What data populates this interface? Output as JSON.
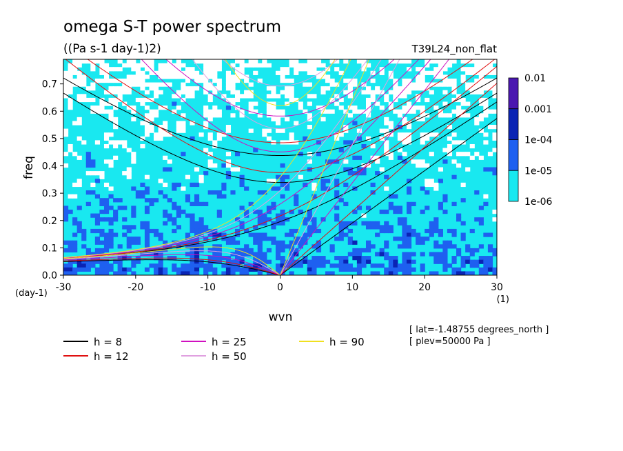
{
  "chart_data": {
    "type": "heatmap",
    "title": "omega S-T power spectrum",
    "subtitle": "((Pa s-1 day-1)2)",
    "run_label": "T39L24_non_flat",
    "xlabel": "wvn",
    "ylabel": "freq",
    "x_unit": "(1)",
    "y_unit": "(day-1)",
    "xlim": [
      -30,
      30
    ],
    "ylim": [
      0,
      0.79
    ],
    "x_ticks": [
      -30,
      -20,
      -10,
      0,
      10,
      20,
      30
    ],
    "x_tick_labels": [
      "-30",
      "-20",
      "-10",
      "0",
      "10",
      "20",
      "30"
    ],
    "y_ticks": [
      0.0,
      0.1,
      0.2,
      0.3,
      0.4,
      0.5,
      0.6,
      0.7
    ],
    "y_tick_labels": [
      "0.0",
      "0.1",
      "0.2",
      "0.3",
      "0.4",
      "0.5",
      "0.6",
      "0.7"
    ],
    "colorbar": {
      "levels": [
        "0.01",
        "0.001",
        "1e-04",
        "1e-05",
        "1e-06"
      ],
      "colors": [
        "#4a17b0",
        "#0a24b4",
        "#1e60f0",
        "#19e8f0"
      ]
    },
    "background_color": "#ffffff",
    "dispersion_curves": [
      {
        "name": "h =  8",
        "h": 8,
        "color": "#000000"
      },
      {
        "name": "h = 12",
        "h": 12,
        "color": "#e01010"
      },
      {
        "name": "h = 25",
        "h": 25,
        "color": "#d010c0"
      },
      {
        "name": "h = 50",
        "h": 50,
        "color": "#e0a0e0"
      },
      {
        "name": "h = 90",
        "h": 90,
        "color": "#f0e020"
      }
    ],
    "annotations": [
      "[ lat=-1.48755 degrees_north ]",
      "[ plev=50000 Pa ]"
    ]
  }
}
